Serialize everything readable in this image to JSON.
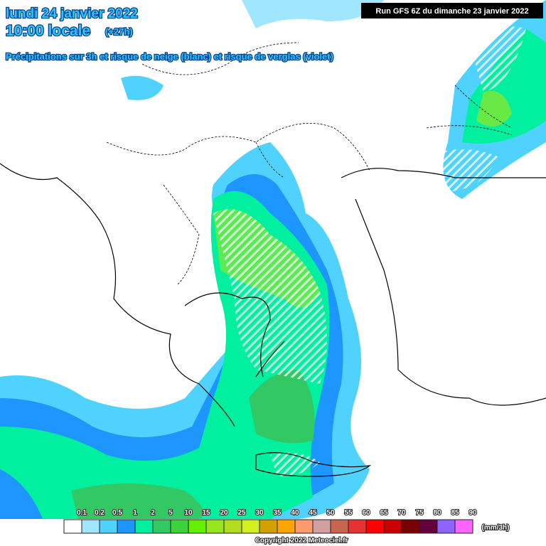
{
  "header": {
    "date": "lundi 24 janvier 2022",
    "time": "10:00 locale",
    "offset": "(+27h)",
    "subtitle": "Précipitations sur 3h et risque de neige (blanc) et risque de verglas (violet)",
    "run": "Run GFS 6Z du dimanche 23 janvier 2022"
  },
  "legend": {
    "labels": [
      0.1,
      0.2,
      0.5,
      1,
      2,
      5,
      10,
      15,
      20,
      25,
      30,
      35,
      40,
      45,
      50,
      55,
      60,
      65,
      70,
      75,
      80,
      85,
      90
    ],
    "colors": [
      "#ffffff",
      "#a0e6ff",
      "#50d2ff",
      "#1e96ff",
      "#00f0a0",
      "#32c864",
      "#3cd23c",
      "#64f000",
      "#96e61e",
      "#b4dc1e",
      "#d2f01e",
      "#d2a000",
      "#ffa500",
      "#ff9a6e",
      "#d2a0a0",
      "#c86450",
      "#e63232",
      "#ff0000",
      "#c80000",
      "#780000",
      "#64003c",
      "#8c64ff",
      "#ff64ff"
    ],
    "unit": "(mm/3h)"
  },
  "footer": {
    "copyright": "Copyright 2022 Meteociel.fr"
  }
}
